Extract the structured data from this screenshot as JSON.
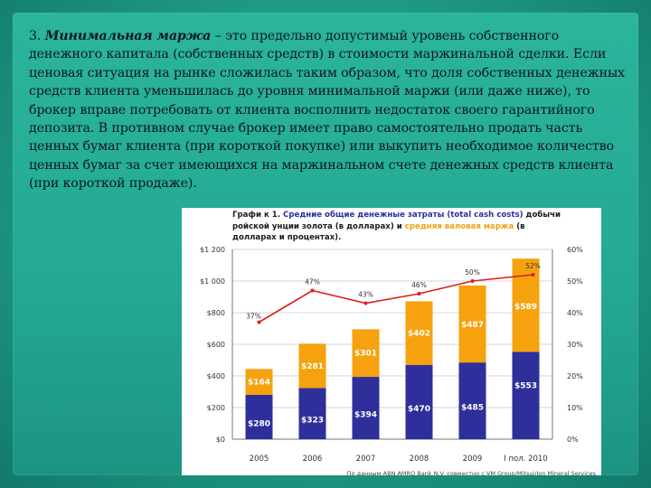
{
  "paragraph": {
    "number": "3.",
    "term": "Минимальная маржа",
    "text": " – это предельно допустимый уровень собственного денежного капитала (собственных средств) в стоимости маржинальной сделки. Если ценовая ситуация на рынке сложилась таким образом, что доля собственных денежных средств клиента уменьшилась до уровня минимальной маржи (или даже ниже), то брокер вправе потребовать от клиента восполнить недостаток своего гарантийного депозита. В противном случае брокер имеет право самостоятельно продать часть ценных бумаг клиента (при короткой покупке) или выкупить необходимое количество ценных бумаг за счет имеющихся на маржинальном счете денежных средств клиента (при короткой продаже)."
  },
  "chart_data": {
    "type": "bar",
    "title_parts": {
      "prefix": "Графи к 1. ",
      "blue": "Средние общие денежные затраты (total cash costs)",
      "mid": " добычи ",
      "line2_prefix": "ройской унции золота (в долларах) и ",
      "orange": "средняя валовая маржа",
      "line2_suffix": " (в",
      "line3": "долларах и процентах)."
    },
    "categories": [
      "2005",
      "2006",
      "2007",
      "2008",
      "2009",
      "I пол. 2010"
    ],
    "series": [
      {
        "values": [
          280,
          323,
          394,
          470,
          485,
          553
        ],
        "labels": [
          "$280",
          "$323",
          "$394",
          "$470",
          "$485",
          "$553"
        ],
        "color": "#2e2f9a"
      },
      {
        "values": [
          164,
          281,
          301,
          402,
          487,
          589
        ],
        "labels": [
          "$164",
          "$281",
          "$301",
          "$402",
          "$487",
          "$589"
        ],
        "color": "#f5a20e"
      },
      {
        "values": [
          37,
          47,
          43,
          46,
          50,
          52
        ],
        "labels": [
          "37%",
          "47%",
          "43%",
          "46%",
          "50%",
          "52%"
        ],
        "color": "#dc1e1e",
        "axis": "right"
      }
    ],
    "y_left": {
      "ticks": [
        "$0",
        "$200",
        "$400",
        "$600",
        "$800",
        "$1 000",
        "$1 200"
      ],
      "ylim": [
        0,
        1200
      ]
    },
    "y_right": {
      "ticks": [
        "0%",
        "10%",
        "20%",
        "30%",
        "40%",
        "50%",
        "60%"
      ],
      "ylim": [
        0,
        60
      ]
    },
    "footnote": "По данным ABN AMRO Bank N.V. совместно с VM Group/Mitsui/Ion Mineral Services",
    "grid": true
  }
}
